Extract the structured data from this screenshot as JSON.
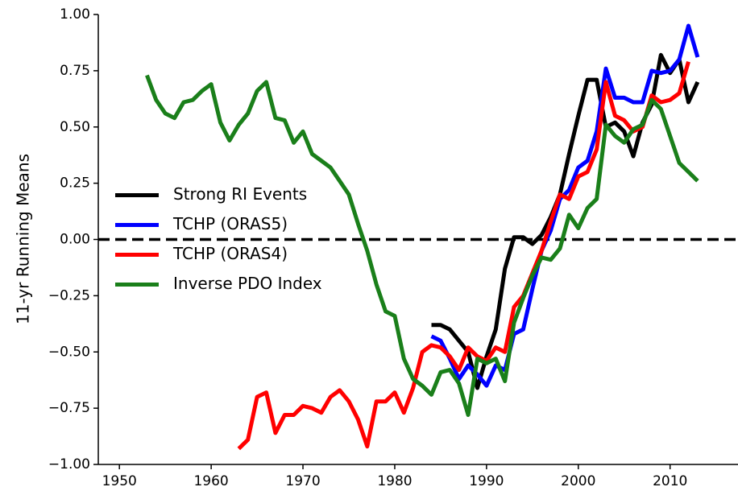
{
  "chart_data": {
    "type": "line",
    "y_label": "11-yr Running Means",
    "x": [
      1953,
      1954,
      1955,
      1956,
      1957,
      1958,
      1959,
      1960,
      1961,
      1962,
      1963,
      1964,
      1965,
      1966,
      1967,
      1968,
      1969,
      1970,
      1971,
      1972,
      1973,
      1974,
      1975,
      1976,
      1977,
      1978,
      1979,
      1980,
      1981,
      1982,
      1983,
      1984,
      1985,
      1986,
      1987,
      1988,
      1989,
      1990,
      1991,
      1992,
      1993,
      1994,
      1995,
      1996,
      1997,
      1998,
      1999,
      2000,
      2001,
      2002,
      2003,
      2004,
      2005,
      2006,
      2007,
      2008,
      2009,
      2010,
      2011,
      2012,
      2013
    ],
    "series": [
      {
        "name": "Strong RI Events",
        "color": "#000000",
        "values": [
          null,
          null,
          null,
          null,
          null,
          null,
          null,
          null,
          null,
          null,
          null,
          null,
          null,
          null,
          null,
          null,
          null,
          null,
          null,
          null,
          null,
          null,
          null,
          null,
          null,
          null,
          null,
          null,
          null,
          null,
          null,
          -0.38,
          -0.38,
          -0.4,
          -0.45,
          -0.5,
          -0.66,
          -0.52,
          -0.4,
          -0.13,
          0.01,
          0.01,
          -0.02,
          0.02,
          0.1,
          0.2,
          0.38,
          0.55,
          0.71,
          0.71,
          0.5,
          0.52,
          0.48,
          0.37,
          0.52,
          0.6,
          0.82,
          0.74,
          0.8,
          0.61,
          0.7
        ]
      },
      {
        "name": "TCHP (ORAS5)",
        "color": "#0000ff",
        "values": [
          null,
          null,
          null,
          null,
          null,
          null,
          null,
          null,
          null,
          null,
          null,
          null,
          null,
          null,
          null,
          null,
          null,
          null,
          null,
          null,
          null,
          null,
          null,
          null,
          null,
          null,
          null,
          null,
          null,
          null,
          null,
          -0.43,
          -0.45,
          -0.53,
          -0.62,
          -0.56,
          -0.6,
          -0.65,
          -0.56,
          -0.58,
          -0.42,
          -0.4,
          -0.22,
          -0.05,
          0.04,
          0.18,
          0.22,
          0.32,
          0.35,
          0.48,
          0.76,
          0.63,
          0.63,
          0.61,
          0.61,
          0.75,
          0.74,
          0.75,
          0.8,
          0.95,
          0.81
        ]
      },
      {
        "name": "TCHP (ORAS4)",
        "color": "#ff0000",
        "values": [
          null,
          null,
          null,
          null,
          null,
          null,
          null,
          null,
          null,
          null,
          -0.93,
          -0.89,
          -0.7,
          -0.68,
          -0.86,
          -0.78,
          -0.78,
          -0.74,
          -0.75,
          -0.77,
          -0.7,
          -0.67,
          -0.72,
          -0.8,
          -0.92,
          -0.72,
          -0.72,
          -0.68,
          -0.77,
          -0.66,
          -0.5,
          -0.47,
          -0.48,
          -0.52,
          -0.58,
          -0.48,
          -0.52,
          -0.54,
          -0.48,
          -0.5,
          -0.3,
          -0.25,
          -0.15,
          -0.05,
          0.08,
          0.2,
          0.18,
          0.28,
          0.3,
          0.4,
          0.7,
          0.55,
          0.53,
          0.48,
          0.5,
          0.64,
          0.61,
          0.62,
          0.65,
          0.79,
          null
        ]
      },
      {
        "name": "Inverse PDO Index",
        "color": "#1a7f1a",
        "values": [
          0.73,
          0.62,
          0.56,
          0.54,
          0.61,
          0.62,
          0.66,
          0.69,
          0.52,
          0.44,
          0.51,
          0.56,
          0.66,
          0.7,
          0.54,
          0.53,
          0.43,
          0.48,
          0.38,
          0.35,
          0.32,
          0.26,
          0.2,
          0.07,
          -0.05,
          -0.2,
          -0.32,
          -0.34,
          -0.53,
          -0.62,
          -0.65,
          -0.69,
          -0.59,
          -0.58,
          -0.64,
          -0.78,
          -0.53,
          -0.55,
          -0.53,
          -0.63,
          -0.37,
          -0.26,
          -0.16,
          -0.08,
          -0.09,
          -0.04,
          0.11,
          0.05,
          0.14,
          0.18,
          0.51,
          0.46,
          0.43,
          0.49,
          0.51,
          0.62,
          0.58,
          0.46,
          0.34,
          0.3,
          0.26
        ]
      }
    ],
    "xlim": [
      1947.7,
      2017.4
    ],
    "xticks": [
      1950,
      1960,
      1970,
      1980,
      1990,
      2000,
      2010
    ],
    "ylim": [
      -1,
      1
    ],
    "yticks": [
      {
        "value": -1,
        "label": "−1.00"
      },
      {
        "value": -0.75,
        "label": "−0.75"
      },
      {
        "value": -0.5,
        "label": "−0.50"
      },
      {
        "value": -0.25,
        "label": "−0.25"
      },
      {
        "value": 0,
        "label": "0.00"
      },
      {
        "value": 0.25,
        "label": "0.25"
      },
      {
        "value": 0.5,
        "label": "0.50"
      },
      {
        "value": 0.75,
        "label": "0.75"
      },
      {
        "value": 1,
        "label": "1.00"
      }
    ],
    "hline": 0,
    "legend": "center left"
  }
}
